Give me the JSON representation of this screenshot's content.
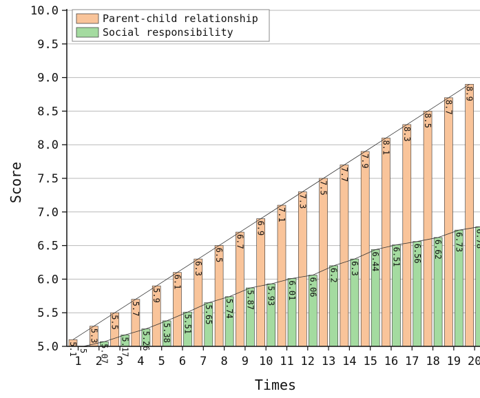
{
  "chart_data": {
    "type": "bar",
    "title": "",
    "xlabel": "Times",
    "ylabel": "Score",
    "ylim": [
      5.0,
      10.0
    ],
    "yticks": [
      "5.0",
      "5.5",
      "6.0",
      "6.5",
      "7.0",
      "7.5",
      "8.0",
      "8.5",
      "9.0",
      "9.5",
      "10.0"
    ],
    "categories": [
      "1",
      "2",
      "3",
      "4",
      "5",
      "6",
      "7",
      "8",
      "9",
      "10",
      "11",
      "12",
      "13",
      "14",
      "15",
      "16",
      "17",
      "18",
      "19",
      "20"
    ],
    "grid": "horizontal",
    "legend_position": "top-left",
    "series": [
      {
        "name": "Parent-child relationship",
        "color": "#f9c49a",
        "values": [
          5.1,
          5.3,
          5.5,
          5.7,
          5.9,
          6.1,
          6.3,
          6.5,
          6.7,
          6.9,
          7.1,
          7.3,
          7.5,
          7.7,
          7.9,
          8.1,
          8.3,
          8.5,
          8.7,
          8.9
        ],
        "labels": [
          "5.1",
          "5.3",
          "5.5",
          "5.7",
          "5.9",
          "6.1",
          "6.3",
          "6.5",
          "6.7",
          "6.9",
          "7.1",
          "7.3",
          "7.5",
          "7.7",
          "7.9",
          "8.1",
          "8.3",
          "8.5",
          "8.7",
          "8.9"
        ]
      },
      {
        "name": "Social responsibility",
        "color": "#a4dba0",
        "values": [
          5.0,
          5.07,
          5.17,
          5.26,
          5.38,
          5.51,
          5.65,
          5.74,
          5.87,
          5.93,
          6.01,
          6.06,
          6.2,
          6.3,
          6.44,
          6.51,
          6.56,
          6.62,
          6.73,
          6.78
        ],
        "labels": [
          "5",
          "5.07",
          "5.17",
          "5.26",
          "5.38",
          "5.51",
          "5.65",
          "5.74",
          "5.87",
          "5.93",
          "6.01",
          "6.06",
          "6.2",
          "6.3",
          "6.44",
          "6.51",
          "6.56",
          "6.62",
          "6.73",
          "6.78"
        ]
      }
    ]
  }
}
